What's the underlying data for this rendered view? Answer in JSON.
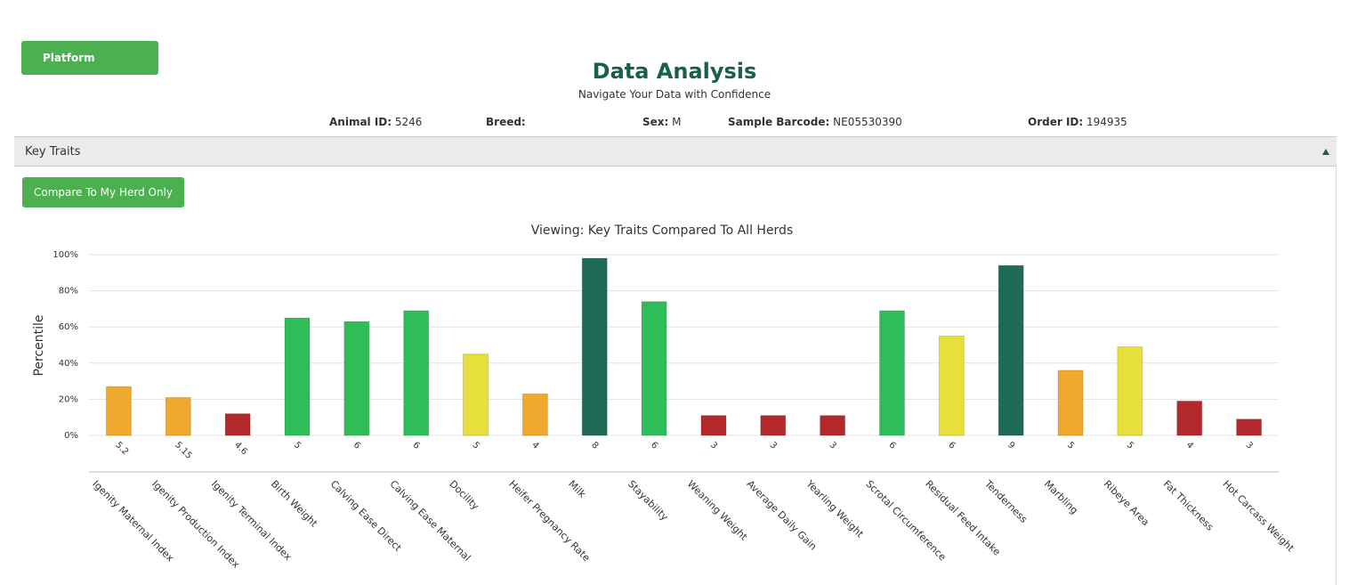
{
  "header": {
    "button": "Platform",
    "title": "Data Analysis",
    "subtitle": "Navigate Your Data with Confidence"
  },
  "info": [
    {
      "label": "Animal ID:",
      "value": "5246"
    },
    {
      "label": "Breed:"
    },
    {
      "label": "Sex:",
      "value": "M"
    },
    {
      "label": "Sample Barcode:",
      "value": "NE05530390"
    },
    {
      "label": "Order ID:",
      "value": "194935"
    }
  ],
  "section": {
    "title": "Key Traits",
    "button": "Compare To My Herd Only"
  },
  "chart_data": {
    "type": "bar",
    "title": "Viewing: Key Traits Compared To All Herds",
    "y_label": "Percentile",
    "categories": [
      "Igenity Maternal Index",
      "Igenity Production Index",
      "Igenity Terminal Index",
      "Birth Weight",
      "Calving Ease Direct",
      "Calving Ease Maternal",
      "Docility",
      "Heifer Pregnancy Rate",
      "Milk",
      "Stayability",
      "Weaning Weight",
      "Average Daily Gain",
      "Yearling Weight",
      "Scrotal Circumference",
      "Residual Feed Intake",
      "Tenderness",
      "Marbling",
      "Ribeye Area",
      "Fat Thickness",
      "Hot Carcass Weight"
    ],
    "values": [
      27,
      21,
      12,
      65,
      63,
      69,
      45,
      23,
      98,
      74,
      11,
      11,
      11,
      69,
      55,
      94,
      36,
      49,
      19,
      9
    ],
    "scores": [
      5.2,
      5.15,
      4.6,
      5,
      6,
      6,
      5,
      4,
      8,
      6,
      3,
      3,
      3,
      6,
      6,
      9,
      5,
      5,
      4,
      3
    ],
    "colors": [
      "#efa92f",
      "#efa92f",
      "#b3292b",
      "#2fbd5a",
      "#2fbd5a",
      "#2fbd5a",
      "#e6df3c",
      "#efa92f",
      "#1f6a57",
      "#2fbd5a",
      "#b3292b",
      "#b3292b",
      "#b3292b",
      "#2fbd5a",
      "#e6df3c",
      "#1f6a57",
      "#efa92f",
      "#e6df3c",
      "#b3292b",
      "#b3292b"
    ],
    "ylim": [
      0,
      100
    ],
    "yticks": [
      {
        "value": 0,
        "label": "0%"
      },
      {
        "value": 20,
        "label": "20%"
      },
      {
        "value": 40,
        "label": "40%"
      },
      {
        "value": 60,
        "label": "60%"
      },
      {
        "value": 80,
        "label": "80%"
      },
      {
        "value": 100,
        "label": "100%"
      }
    ],
    "grid": true
  }
}
